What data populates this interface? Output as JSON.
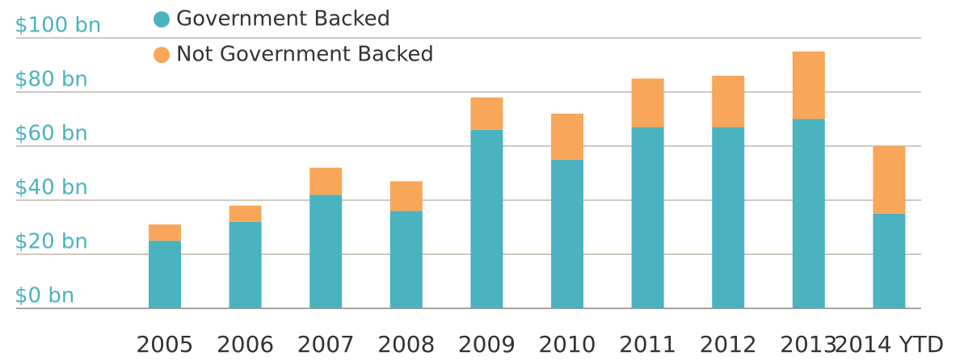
{
  "chart_data": {
    "type": "bar",
    "stacked": true,
    "categories": [
      "2005",
      "2006",
      "2007",
      "2008",
      "2009",
      "2010",
      "2011",
      "2012",
      "2013",
      "2014 YTD"
    ],
    "series": [
      {
        "name": "Government Backed",
        "color": "#4ab3bf",
        "values": [
          25,
          32,
          42,
          36,
          66,
          55,
          67,
          67,
          70,
          35
        ]
      },
      {
        "name": "Not Government Backed",
        "color": "#f8a65a",
        "values": [
          6,
          6,
          10,
          11,
          12,
          17,
          18,
          19,
          25,
          25
        ]
      }
    ],
    "ylim": [
      0,
      100
    ],
    "yticks": [
      {
        "value": 0,
        "label": "$0 bn"
      },
      {
        "value": 20,
        "label": "$20 bn"
      },
      {
        "value": 40,
        "label": "$40 bn"
      },
      {
        "value": 60,
        "label": "$60 bn"
      },
      {
        "value": 80,
        "label": "$80 bn"
      },
      {
        "value": 100,
        "label": "$100 bn"
      }
    ],
    "grid": true,
    "legend": "top-left"
  }
}
